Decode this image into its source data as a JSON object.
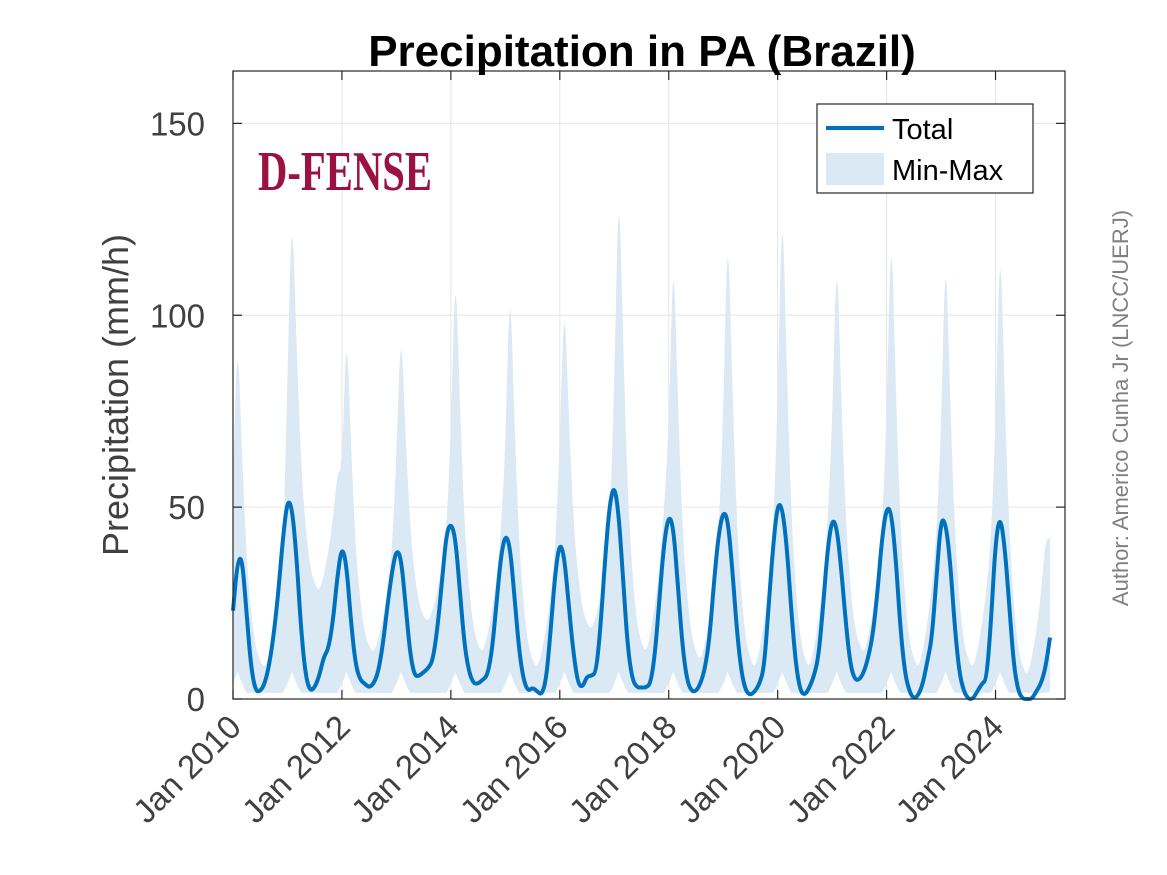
{
  "chart_data": {
    "type": "area",
    "title": "Precipitation in PA (Brazil)",
    "xlabel": "",
    "ylabel": "Precipitation (mm/h)",
    "ylim": [
      0,
      160
    ],
    "yticks": [
      0,
      50,
      100,
      150
    ],
    "xlim": [
      "2010-01",
      "2025-01"
    ],
    "xticks": [
      "Jan 2010",
      "Jan 2012",
      "Jan 2014",
      "Jan 2016",
      "Jan 2018",
      "Jan 2020",
      "Jan 2022",
      "Jan 2024"
    ],
    "grid": true,
    "legend_position": "top-right",
    "series": [
      {
        "name": "Total",
        "type": "line",
        "color": "#0072bd",
        "x": [
          "2010-01",
          "2010-02",
          "2010-03",
          "2010-04",
          "2010-05",
          "2010-06",
          "2010-07",
          "2010-08",
          "2010-09",
          "2010-10",
          "2010-11",
          "2010-12",
          "2011-01",
          "2011-02",
          "2011-03",
          "2011-04",
          "2011-05",
          "2011-06",
          "2011-07",
          "2011-08",
          "2011-09",
          "2011-10",
          "2011-11",
          "2011-12",
          "2012-01",
          "2012-02",
          "2012-03",
          "2012-04",
          "2012-05",
          "2012-06",
          "2012-07",
          "2012-08",
          "2012-09",
          "2012-10",
          "2012-11",
          "2012-12",
          "2013-01",
          "2013-02",
          "2013-03",
          "2013-04",
          "2013-05",
          "2013-06",
          "2013-07",
          "2013-08",
          "2013-09",
          "2013-10",
          "2013-11",
          "2013-12",
          "2014-01",
          "2014-02",
          "2014-03",
          "2014-04",
          "2014-05",
          "2014-06",
          "2014-07",
          "2014-08",
          "2014-09",
          "2014-10",
          "2014-11",
          "2014-12",
          "2015-01",
          "2015-02",
          "2015-03",
          "2015-04",
          "2015-05",
          "2015-06",
          "2015-07",
          "2015-08",
          "2015-09",
          "2015-10",
          "2015-11",
          "2015-12",
          "2016-01",
          "2016-02",
          "2016-03",
          "2016-04",
          "2016-05",
          "2016-06",
          "2016-07",
          "2016-08",
          "2016-09",
          "2016-10",
          "2016-11",
          "2016-12",
          "2017-01",
          "2017-02",
          "2017-03",
          "2017-04",
          "2017-05",
          "2017-06",
          "2017-07",
          "2017-08",
          "2017-09",
          "2017-10",
          "2017-11",
          "2017-12",
          "2018-01",
          "2018-02",
          "2018-03",
          "2018-04",
          "2018-05",
          "2018-06",
          "2018-07",
          "2018-08",
          "2018-09",
          "2018-10",
          "2018-11",
          "2018-12",
          "2019-01",
          "2019-02",
          "2019-03",
          "2019-04",
          "2019-05",
          "2019-06",
          "2019-07",
          "2019-08",
          "2019-09",
          "2019-10",
          "2019-11",
          "2019-12",
          "2020-01",
          "2020-02",
          "2020-03",
          "2020-04",
          "2020-05",
          "2020-06",
          "2020-07",
          "2020-08",
          "2020-09",
          "2020-10",
          "2020-11",
          "2020-12",
          "2021-01",
          "2021-02",
          "2021-03",
          "2021-04",
          "2021-05",
          "2021-06",
          "2021-07",
          "2021-08",
          "2021-09",
          "2021-10",
          "2021-11",
          "2021-12",
          "2022-01",
          "2022-02",
          "2022-03",
          "2022-04",
          "2022-05",
          "2022-06",
          "2022-07",
          "2022-08",
          "2022-09",
          "2022-10",
          "2022-11",
          "2022-12",
          "2023-01",
          "2023-02",
          "2023-03",
          "2023-04",
          "2023-05",
          "2023-06",
          "2023-07",
          "2023-08",
          "2023-09",
          "2023-10",
          "2023-11",
          "2023-12",
          "2024-01",
          "2024-02",
          "2024-03",
          "2024-04",
          "2024-05",
          "2024-06",
          "2024-07",
          "2024-08",
          "2024-09",
          "2024-10",
          "2024-11",
          "2024-12",
          "2025-01"
        ],
        "values": [
          23,
          36,
          37,
          22,
          8,
          2,
          2,
          4,
          9,
          17,
          28,
          42,
          52,
          50,
          37,
          18,
          6,
          2,
          3,
          6,
          11,
          13,
          20,
          32,
          40,
          35,
          20,
          9,
          5,
          4,
          3,
          4,
          7,
          14,
          24,
          33,
          39,
          37,
          25,
          12,
          6,
          6,
          7,
          8,
          10,
          18,
          30,
          43,
          46,
          42,
          28,
          14,
          7,
          4,
          4,
          5,
          6,
          12,
          24,
          37,
          43,
          40,
          27,
          13,
          5,
          2,
          3,
          2,
          1,
          5,
          18,
          33,
          41,
          37,
          24,
          12,
          4,
          3,
          6,
          6,
          7,
          19,
          37,
          51,
          56,
          48,
          30,
          13,
          5,
          3,
          3,
          3,
          4,
          12,
          27,
          41,
          48,
          45,
          30,
          14,
          5,
          2,
          2,
          4,
          8,
          16,
          31,
          43,
          49,
          47,
          34,
          18,
          7,
          2,
          1,
          2,
          4,
          8,
          24,
          40,
          51,
          50,
          40,
          23,
          9,
          2,
          1,
          3,
          6,
          11,
          24,
          39,
          47,
          45,
          34,
          20,
          9,
          5,
          5,
          7,
          11,
          17,
          28,
          42,
          50,
          49,
          37,
          19,
          7,
          2,
          0,
          1,
          4,
          10,
          16,
          32,
          47,
          46,
          36,
          19,
          7,
          2,
          0,
          0,
          2,
          4,
          5,
          20,
          41,
          48,
          40,
          25,
          9,
          2,
          0,
          0,
          0,
          2,
          4,
          8,
          16
        ],
        "note_label": "Total"
      },
      {
        "name": "Min-Max",
        "type": "band",
        "color": "#dae9f4",
        "upper_peaks": [
          {
            "x": "2010-02",
            "v": 97
          },
          {
            "x": "2011-02",
            "v": 131
          },
          {
            "x": "2012-02",
            "v": 99
          },
          {
            "x": "2013-02",
            "v": 99
          },
          {
            "x": "2014-02",
            "v": 116
          },
          {
            "x": "2015-02",
            "v": 112
          },
          {
            "x": "2016-02",
            "v": 107
          },
          {
            "x": "2017-02",
            "v": 139
          },
          {
            "x": "2018-02",
            "v": 120
          },
          {
            "x": "2019-02",
            "v": 127
          },
          {
            "x": "2020-02",
            "v": 134
          },
          {
            "x": "2021-02",
            "v": 120
          },
          {
            "x": "2022-02",
            "v": 127
          },
          {
            "x": "2023-02",
            "v": 121
          },
          {
            "x": "2024-02",
            "v": 124
          }
        ],
        "upper_troughs": [
          {
            "x": "2010-08",
            "v": 8
          },
          {
            "x": "2011-08",
            "v": 28
          },
          {
            "x": "2012-08",
            "v": 12
          },
          {
            "x": "2013-08",
            "v": 20
          },
          {
            "x": "2014-08",
            "v": 12
          },
          {
            "x": "2015-08",
            "v": 8
          },
          {
            "x": "2016-08",
            "v": 18
          },
          {
            "x": "2017-08",
            "v": 12
          },
          {
            "x": "2018-08",
            "v": 10
          },
          {
            "x": "2019-08",
            "v": 8
          },
          {
            "x": "2020-08",
            "v": 8
          },
          {
            "x": "2021-08",
            "v": 12
          },
          {
            "x": "2022-08",
            "v": 8
          },
          {
            "x": "2023-08",
            "v": 8
          },
          {
            "x": "2024-08",
            "v": 6
          }
        ],
        "lower_peak": 7,
        "lower_trough": 1
      }
    ],
    "annotations": {
      "watermark": "D-FENSE",
      "author": "Author: Americo Cunha Jr (LNCC/UERJ)"
    }
  }
}
